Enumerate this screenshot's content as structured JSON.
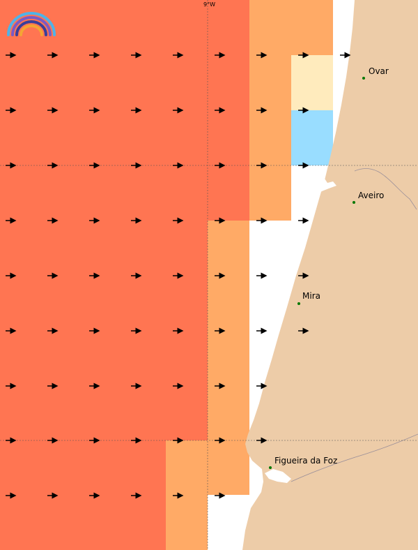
{
  "map": {
    "top_tick_label": "9°W",
    "colors": {
      "sea_high": "#FF7552",
      "sea_mid": "#FFAA66",
      "sea_low": "#FFEBBD",
      "sea_cold": "#99DDFF",
      "land": "#EDCCA8",
      "coast_line": "#9A8F99",
      "grid_line": "#555555",
      "arrow": "#000000",
      "city_dot": "#007700"
    },
    "logo_icon": "rainbow-logo-icon",
    "arrow_icon": "arrow-right-icon",
    "cities": [
      {
        "name": "Ovar"
      },
      {
        "name": "Aveiro"
      },
      {
        "name": "Mira"
      },
      {
        "name": "Figueira da Foz"
      }
    ]
  }
}
